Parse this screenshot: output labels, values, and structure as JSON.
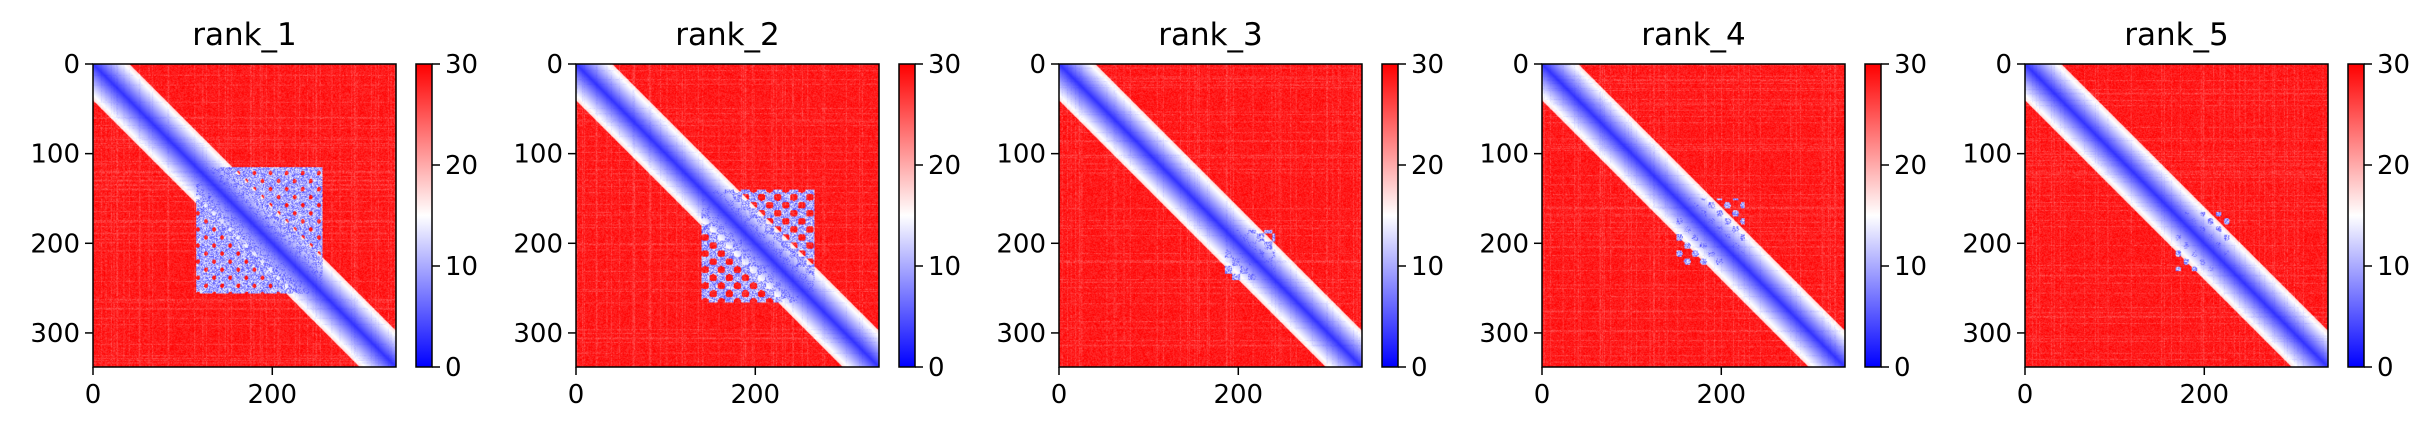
{
  "chart_data": [
    {
      "type": "heatmap",
      "title": "rank_1",
      "x_ticks": [
        0,
        200
      ],
      "y_ticks": [
        0,
        100,
        200,
        300
      ],
      "xlim": [
        0,
        338
      ],
      "ylim": [
        338,
        0
      ],
      "colorbar": {
        "ticks": [
          0,
          10,
          20,
          30
        ],
        "range": [
          0,
          30
        ],
        "colormap": "bwr"
      },
      "low_distance_regions": [
        {
          "from": 115,
          "to": 255,
          "strength": 0.85
        }
      ]
    },
    {
      "type": "heatmap",
      "title": "rank_2",
      "x_ticks": [
        0,
        200
      ],
      "y_ticks": [
        0,
        100,
        200,
        300
      ],
      "xlim": [
        0,
        338
      ],
      "ylim": [
        338,
        0
      ],
      "colorbar": {
        "ticks": [
          0,
          10,
          20,
          30
        ],
        "range": [
          0,
          30
        ],
        "colormap": "bwr"
      },
      "low_distance_regions": [
        {
          "from": 140,
          "to": 265,
          "strength": 0.6
        }
      ]
    },
    {
      "type": "heatmap",
      "title": "rank_3",
      "x_ticks": [
        0,
        200
      ],
      "y_ticks": [
        0,
        100,
        200,
        300
      ],
      "xlim": [
        0,
        338
      ],
      "ylim": [
        338,
        0
      ],
      "colorbar": {
        "ticks": [
          0,
          10,
          20,
          30
        ],
        "range": [
          0,
          30
        ],
        "colormap": "bwr"
      },
      "low_distance_regions": [
        {
          "from": 185,
          "to": 240,
          "strength": 0.5
        }
      ]
    },
    {
      "type": "heatmap",
      "title": "rank_4",
      "x_ticks": [
        0,
        200
      ],
      "y_ticks": [
        0,
        100,
        200,
        300
      ],
      "xlim": [
        0,
        338
      ],
      "ylim": [
        338,
        0
      ],
      "colorbar": {
        "ticks": [
          0,
          10,
          20,
          30
        ],
        "range": [
          0,
          30
        ],
        "colormap": "bwr"
      },
      "low_distance_regions": [
        {
          "from": 150,
          "to": 225,
          "strength": 0.35
        }
      ]
    },
    {
      "type": "heatmap",
      "title": "rank_5",
      "x_ticks": [
        0,
        200
      ],
      "y_ticks": [
        0,
        100,
        200,
        300
      ],
      "xlim": [
        0,
        338
      ],
      "ylim": [
        338,
        0
      ],
      "colorbar": {
        "ticks": [
          0,
          10,
          20,
          30
        ],
        "range": [
          0,
          30
        ],
        "colormap": "bwr"
      },
      "low_distance_regions": [
        {
          "from": 165,
          "to": 230,
          "strength": 0.3
        }
      ]
    }
  ]
}
